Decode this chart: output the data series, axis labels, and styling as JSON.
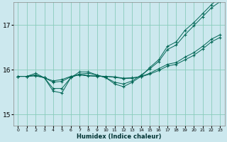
{
  "xlabel": "Humidex (Indice chaleur)",
  "ylabel": "",
  "bg_color": "#cce8ee",
  "grid_color": "#88ccbb",
  "line_color": "#006655",
  "xlim": [
    -0.5,
    23.5
  ],
  "ylim": [
    14.75,
    17.5
  ],
  "yticks": [
    15,
    16,
    17
  ],
  "xticks": [
    0,
    1,
    2,
    3,
    4,
    5,
    6,
    7,
    8,
    9,
    10,
    11,
    12,
    13,
    14,
    15,
    16,
    17,
    18,
    19,
    20,
    21,
    22,
    23
  ],
  "series": [
    [
      15.85,
      15.85,
      15.88,
      15.82,
      15.75,
      15.78,
      15.85,
      15.88,
      15.86,
      15.85,
      15.85,
      15.84,
      15.81,
      15.82,
      15.84,
      15.9,
      15.98,
      16.08,
      16.12,
      16.22,
      16.32,
      16.46,
      16.62,
      16.72
    ],
    [
      15.85,
      15.85,
      15.92,
      15.82,
      15.52,
      15.48,
      15.82,
      15.95,
      15.95,
      15.88,
      15.82,
      15.68,
      15.62,
      15.72,
      15.85,
      16.05,
      16.22,
      16.52,
      16.62,
      16.88,
      17.05,
      17.25,
      17.45,
      17.62
    ],
    [
      15.85,
      15.85,
      15.86,
      15.82,
      15.72,
      15.74,
      15.84,
      15.9,
      15.87,
      15.86,
      15.85,
      15.83,
      15.8,
      15.81,
      15.85,
      15.92,
      16.02,
      16.12,
      16.16,
      16.28,
      16.38,
      16.52,
      16.68,
      16.78
    ],
    [
      15.85,
      15.85,
      15.88,
      15.82,
      15.58,
      15.58,
      15.82,
      15.9,
      15.92,
      15.88,
      15.82,
      15.72,
      15.68,
      15.75,
      15.88,
      16.02,
      16.18,
      16.45,
      16.55,
      16.78,
      16.98,
      17.18,
      17.38,
      17.52
    ]
  ]
}
